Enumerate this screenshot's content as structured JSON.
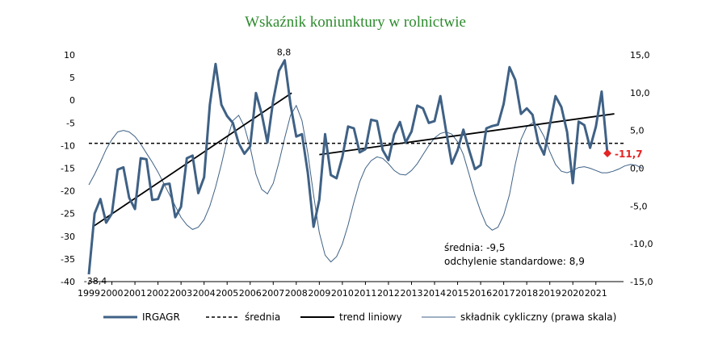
{
  "chart_data": {
    "type": "line",
    "title": "Wskaźnik koniunktury w rolnictwie",
    "x_start": 1999,
    "x_step": 0.25,
    "xlim": [
      1999,
      2022.2
    ],
    "x_ticks": [
      "1999",
      "2000",
      "2001",
      "2002",
      "2003",
      "2004",
      "2005",
      "2006",
      "2007",
      "2008",
      "2009",
      "2010",
      "2011",
      "2012",
      "2013",
      "2014",
      "2015",
      "2016",
      "2017",
      "2018",
      "2019",
      "2020",
      "2021"
    ],
    "ylim_left": [
      -40,
      10
    ],
    "y_ticks_left": [
      "10",
      "5",
      "0",
      "-5",
      "-10",
      "-15",
      "-20",
      "-25",
      "-30",
      "-35",
      "-40"
    ],
    "ylim_right": [
      -15,
      15
    ],
    "y_ticks_right": [
      "15,0",
      "10,0",
      "5,0",
      "0,0",
      "-5,0",
      "-10,0",
      "-15,0"
    ],
    "series": [
      {
        "name": "IRGAGR",
        "axis": "left",
        "color": "#3f6185",
        "values": [
          -38.4,
          -25,
          -21.8,
          -27,
          -25,
          -15.3,
          -14.8,
          -21.5,
          -24,
          -12.8,
          -13,
          -22,
          -21.8,
          -18.6,
          -18.4,
          -25.8,
          -23.5,
          -12.8,
          -12.2,
          -20.5,
          -17,
          -1,
          8,
          -1,
          -3.5,
          -5,
          -9.5,
          -11.8,
          -10.2,
          1.6,
          -3,
          -9.3,
          0,
          6.5,
          8.8,
          -1,
          -8,
          -7.5,
          -16,
          -27.9,
          -22,
          -7.5,
          -16.5,
          -17.2,
          -12.5,
          -5.8,
          -6.2,
          -11.5,
          -10.8,
          -4.3,
          -4.6,
          -11,
          -13.2,
          -7.5,
          -4.8,
          -9.3,
          -6.9,
          -1.2,
          -1.8,
          -5,
          -4.6,
          0.9,
          -6.8,
          -14,
          -11,
          -6.5,
          -11,
          -15.2,
          -14.3,
          -6.2,
          -5.7,
          -5.4,
          -0.8,
          7.3,
          4.5,
          -3,
          -1.8,
          -3.2,
          -9.3,
          -12,
          -5.5,
          0.9,
          -1.5,
          -7,
          -18.3,
          -4.7,
          -5.5,
          -10.5,
          -5.8,
          1.9,
          -11.7
        ]
      },
      {
        "name": "średnia",
        "axis": "left",
        "color": "#000000",
        "value": -9.5
      },
      {
        "name": "trend liniowy",
        "axis": "left",
        "color": "#000000",
        "segments": [
          {
            "x": [
              1999.2,
              2007.8
            ],
            "y": [
              -27.8,
              1.6
            ]
          },
          {
            "x": [
              2009.0,
              2021.8
            ],
            "y": [
              -12,
              -3
            ]
          }
        ]
      },
      {
        "name": "składnik cykliczny (prawa skala)",
        "axis": "right",
        "color": "#3f6185",
        "values": [
          -2.2,
          -0.8,
          0.8,
          2.5,
          3.8,
          4.8,
          5.0,
          4.8,
          4.2,
          3.2,
          2.0,
          0.8,
          -0.5,
          -2.0,
          -3.5,
          -5.0,
          -6.5,
          -7.5,
          -8.1,
          -7.8,
          -6.8,
          -5.0,
          -2.5,
          0.5,
          3.8,
          6.3,
          7.0,
          5.5,
          2.8,
          -0.8,
          -2.8,
          -3.4,
          -2.0,
          0.8,
          4.0,
          7.0,
          8.3,
          6.3,
          2.0,
          -3.5,
          -8.5,
          -11.5,
          -12.4,
          -11.7,
          -10.0,
          -7.5,
          -4.5,
          -1.8,
          0.0,
          1.0,
          1.5,
          1.3,
          0.6,
          -0.3,
          -0.8,
          -0.9,
          -0.3,
          0.6,
          1.8,
          3.0,
          4.0,
          4.6,
          4.8,
          4.5,
          3.5,
          1.8,
          -0.8,
          -3.5,
          -5.7,
          -7.5,
          -8.2,
          -7.8,
          -6.2,
          -3.5,
          0.5,
          3.8,
          5.5,
          6.0,
          5.6,
          4.2,
          2.2,
          0.5,
          -0.4,
          -0.6,
          -0.3,
          0.1,
          0.2,
          0.0,
          -0.3,
          -0.6,
          -0.6,
          -0.4,
          -0.1,
          0.3,
          0.5,
          0.4,
          0.0
        ]
      }
    ],
    "annotations": {
      "min_label": "-38,4",
      "max_label": "8,8",
      "last_label": "-11,7",
      "last_color": "#e52424",
      "stats_line1": "średnia: -9,5",
      "stats_line2": "odchylenie standardowe: 8,9"
    },
    "legend": [
      "IRGAGR",
      "średnia",
      "trend liniowy",
      "składnik cykliczny (prawa skala)"
    ],
    "legend_position": "bottom",
    "grid": false
  }
}
